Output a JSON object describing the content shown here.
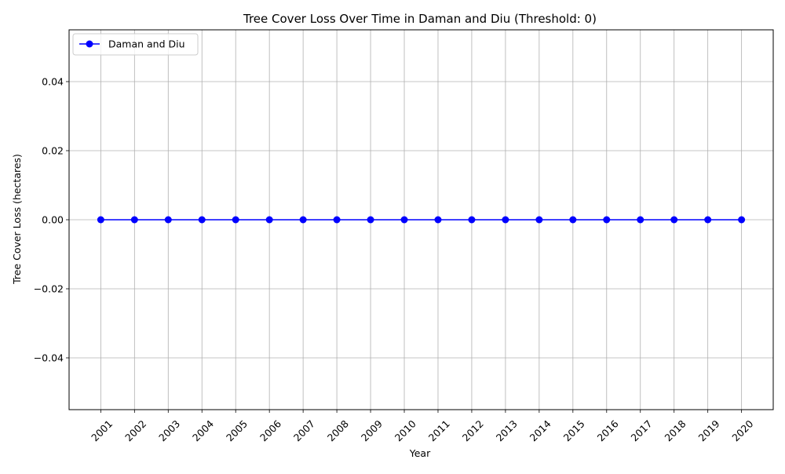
{
  "chart_data": {
    "type": "line",
    "title": "Tree Cover Loss Over Time in Daman and Diu (Threshold: 0)",
    "xlabel": "Year",
    "ylabel": "Tree Cover Loss (hectares)",
    "x": [
      "2001",
      "2002",
      "2003",
      "2004",
      "2005",
      "2006",
      "2007",
      "2008",
      "2009",
      "2010",
      "2011",
      "2012",
      "2013",
      "2014",
      "2015",
      "2016",
      "2017",
      "2018",
      "2019",
      "2020"
    ],
    "series": [
      {
        "name": "Daman and Diu",
        "values": [
          0,
          0,
          0,
          0,
          0,
          0,
          0,
          0,
          0,
          0,
          0,
          0,
          0,
          0,
          0,
          0,
          0,
          0,
          0,
          0
        ],
        "color": "#0000ff",
        "marker": "circle"
      }
    ],
    "ylim": [
      -0.055,
      0.055
    ],
    "yticks": [
      -0.04,
      -0.02,
      0.0,
      0.02,
      0.04
    ],
    "ytick_labels": [
      "−0.04",
      "−0.02",
      "0.00",
      "0.02",
      "0.04"
    ],
    "xtick_rotation": "45 degrees",
    "grid": true,
    "legend": "top-left"
  }
}
